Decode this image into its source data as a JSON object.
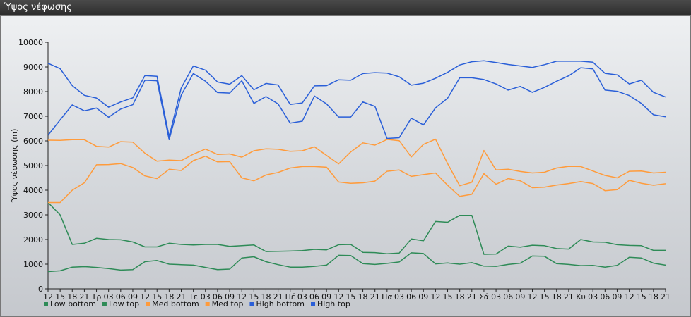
{
  "window": {
    "title": "Ύψος νέφωσης"
  },
  "chart_data": {
    "type": "line",
    "ylabel": "Ύψος νέφωσης (m)",
    "ylim": [
      0,
      10000
    ],
    "yticks": [
      0,
      1000,
      2000,
      3000,
      4000,
      5000,
      6000,
      7000,
      8000,
      9000,
      10000
    ],
    "grid": false,
    "legend_position": "bottom-left",
    "x": [
      "12",
      "15",
      "18",
      "21",
      "Τρ",
      "03",
      "06",
      "09",
      "12",
      "15",
      "18",
      "21",
      "Τε",
      "03",
      "06",
      "09",
      "12",
      "15",
      "18",
      "21",
      "Πέ",
      "03",
      "06",
      "09",
      "12",
      "15",
      "18",
      "21",
      "Πα",
      "03",
      "06",
      "09",
      "12",
      "15",
      "18",
      "21",
      "Σά",
      "03",
      "06",
      "09",
      "12",
      "15",
      "18",
      "21",
      "Κυ",
      "03",
      "06",
      "09",
      "12",
      "15",
      "18",
      "21"
    ],
    "series": [
      {
        "name": "Low bottom",
        "color": "#2e8b57",
        "values": [
          700,
          730,
          880,
          900,
          870,
          820,
          760,
          780,
          1100,
          1150,
          1000,
          980,
          960,
          870,
          780,
          800,
          1250,
          1300,
          1100,
          980,
          880,
          880,
          910,
          960,
          1360,
          1350,
          1020,
          990,
          1030,
          1090,
          1460,
          1430,
          1010,
          1050,
          1000,
          1060,
          920,
          910,
          990,
          1040,
          1330,
          1320,
          1020,
          990,
          940,
          950,
          880,
          950,
          1280,
          1250,
          1040,
          960
        ]
      },
      {
        "name": "Low top",
        "color": "#2e8b57",
        "values": [
          3500,
          3000,
          1800,
          1850,
          2050,
          2000,
          1990,
          1900,
          1700,
          1700,
          1850,
          1800,
          1780,
          1800,
          1800,
          1720,
          1750,
          1780,
          1510,
          1520,
          1530,
          1550,
          1600,
          1580,
          1790,
          1800,
          1480,
          1470,
          1420,
          1450,
          2020,
          1950,
          2730,
          2700,
          2980,
          2980,
          1400,
          1410,
          1730,
          1690,
          1770,
          1750,
          1630,
          1610,
          2000,
          1900,
          1890,
          1790,
          1760,
          1750,
          1560,
          1560
        ]
      },
      {
        "name": "Med bottom",
        "color": "#ff9b3b",
        "values": [
          3500,
          3500,
          4000,
          4300,
          5030,
          5040,
          5080,
          4920,
          4580,
          4470,
          4850,
          4800,
          5200,
          5380,
          5150,
          5160,
          4500,
          4380,
          4620,
          4720,
          4900,
          4960,
          4960,
          4930,
          4330,
          4280,
          4300,
          4370,
          4770,
          4820,
          4560,
          4630,
          4700,
          4200,
          3750,
          3830,
          4670,
          4240,
          4470,
          4380,
          4100,
          4120,
          4210,
          4270,
          4350,
          4270,
          3980,
          4020,
          4400,
          4280,
          4200,
          4260
        ]
      },
      {
        "name": "Med top",
        "color": "#ff9b3b",
        "values": [
          6030,
          6020,
          6050,
          6050,
          5780,
          5750,
          5970,
          5950,
          5500,
          5180,
          5220,
          5200,
          5460,
          5670,
          5450,
          5470,
          5340,
          5600,
          5680,
          5660,
          5580,
          5600,
          5760,
          5410,
          5070,
          5550,
          5920,
          5830,
          6060,
          6010,
          5350,
          5860,
          6070,
          5080,
          4180,
          4320,
          5610,
          4820,
          4850,
          4760,
          4700,
          4730,
          4900,
          4970,
          4960,
          4780,
          4600,
          4500,
          4770,
          4780,
          4700,
          4730
        ]
      },
      {
        "name": "High bottom",
        "color": "#2a5fd8",
        "values": [
          6230,
          6850,
          7460,
          7220,
          7330,
          6960,
          7290,
          7470,
          8460,
          8440,
          6050,
          7860,
          8730,
          8420,
          7960,
          7940,
          8440,
          7520,
          7800,
          7500,
          6720,
          6800,
          7820,
          7500,
          6970,
          6970,
          7580,
          7400,
          6100,
          6130,
          6920,
          6650,
          7340,
          7730,
          8560,
          8560,
          8490,
          8310,
          8060,
          8210,
          7970,
          8170,
          8420,
          8640,
          8970,
          8920,
          8060,
          8010,
          7840,
          7520,
          7060,
          6980
        ]
      },
      {
        "name": "High top",
        "color": "#2a5fd8",
        "values": [
          9150,
          8930,
          8240,
          7850,
          7740,
          7370,
          7580,
          7750,
          8650,
          8620,
          6180,
          8150,
          9040,
          8870,
          8390,
          8300,
          8650,
          8070,
          8330,
          8270,
          7480,
          7540,
          8230,
          8240,
          8480,
          8460,
          8730,
          8770,
          8750,
          8600,
          8260,
          8340,
          8540,
          8780,
          9080,
          9210,
          9250,
          9180,
          9100,
          9040,
          8980,
          9090,
          9230,
          9230,
          9230,
          9190,
          8740,
          8680,
          8310,
          8460,
          7970,
          7780
        ]
      }
    ]
  }
}
